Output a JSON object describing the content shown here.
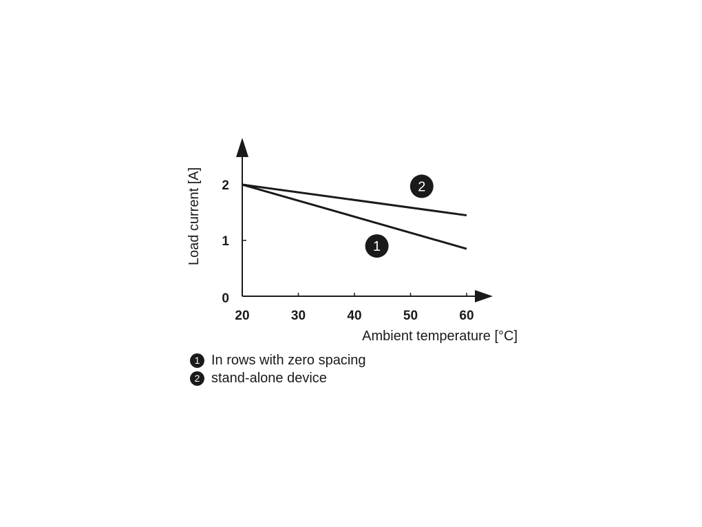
{
  "chart_data": {
    "type": "line",
    "xlabel": "Ambient temperature [°C]",
    "ylabel": "Load current [A]",
    "xlim": [
      20,
      60
    ],
    "ylim": [
      0,
      2
    ],
    "x_ticks": [
      20,
      30,
      40,
      50,
      60
    ],
    "y_ticks": [
      0,
      1,
      2
    ],
    "grid": false,
    "series": [
      {
        "name": "1",
        "x": [
          20,
          60
        ],
        "y": [
          2.0,
          0.85
        ]
      },
      {
        "name": "2",
        "x": [
          20,
          60
        ],
        "y": [
          2.0,
          1.45
        ]
      }
    ],
    "annotations": [
      {
        "text": "1",
        "x": 44,
        "y": 0.9
      },
      {
        "text": "2",
        "x": 52,
        "y": 1.97
      }
    ],
    "legend": {
      "placement": "below",
      "items": [
        {
          "marker": "1",
          "text": "In rows with zero spacing"
        },
        {
          "marker": "2",
          "text": "stand-alone device"
        }
      ]
    }
  }
}
